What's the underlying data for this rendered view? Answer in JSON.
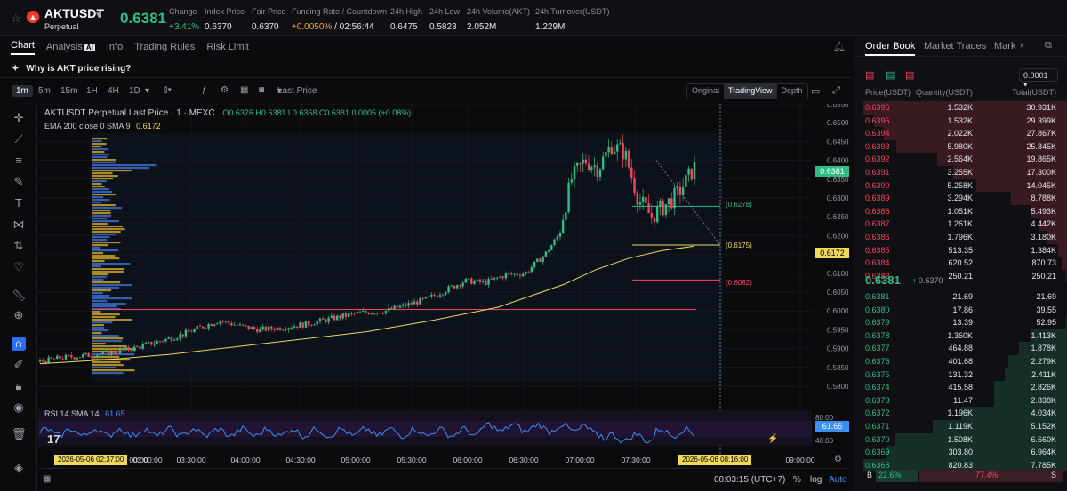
{
  "header": {
    "symbol": "AKTUSDT",
    "contract_type": "Perpetual",
    "last_price": "0.6381",
    "stats": [
      {
        "label": "Change",
        "value": "+3.41%",
        "color": "green"
      },
      {
        "label": "Index Price",
        "value": "0.6370",
        "color": ""
      },
      {
        "label": "Fair Price",
        "value": "0.6370",
        "color": ""
      },
      {
        "label": "Funding Rate / Countdown",
        "value": "+0.0050%",
        "value2": "/ 02:56:44",
        "color": "orange"
      },
      {
        "label": "24h High",
        "value": "0.6475",
        "color": ""
      },
      {
        "label": "24h Low",
        "value": "0.5823",
        "color": ""
      },
      {
        "label": "24h Volume(AKT)",
        "value": "2.052M",
        "color": ""
      },
      {
        "label": "24h Turnover(USDT)",
        "value": "1.229M",
        "color": ""
      }
    ]
  },
  "tabs": [
    "Chart",
    "Analysis",
    "Info",
    "Trading Rules",
    "Risk Limit"
  ],
  "analysis_badge": "AI",
  "why_banner": "Why is AKT price rising?",
  "toolbar": {
    "timeframes": [
      "1m",
      "5m",
      "15m",
      "1H",
      "4H",
      "1D"
    ],
    "active_timeframe": "1m",
    "price_type": "Last Price",
    "views": [
      "Original",
      "TradingView",
      "Depth"
    ],
    "active_view": "TradingView"
  },
  "chart_data": {
    "type": "candlestick",
    "title": "AKTUSDT Perpetual Last Price · 1 · MEXC",
    "ohlc_label": "O0.6376 H0.6381 L0.6368 C0.6381 0.0005 (+0.08%)",
    "ema_label": "EMA 200 close 0 SMA 9",
    "ema_value": "0.6172",
    "y_ticks": [
      "0.6550",
      "0.6500",
      "0.6450",
      "0.6400",
      "0.6350",
      "0.6300",
      "0.6250",
      "0.6200",
      "0.6150",
      "0.6100",
      "0.6050",
      "0.6000",
      "0.5950",
      "0.5900",
      "0.5850",
      "0.5800"
    ],
    "ylim": [
      0.58,
      0.655
    ],
    "x_ticks": [
      "03:00:00",
      "03:30:00",
      "04:00:00",
      "04:30:00",
      "05:00:00",
      "05:30:00",
      "06:00:00",
      "06:30:00",
      "07:00:00",
      "07:30:00",
      "09:00:00"
    ],
    "price_markers": {
      "current": "0.6381",
      "ema": "0.6172"
    },
    "price_levels": [
      {
        "label": "(0.6278)",
        "value": 0.6278,
        "color": "#2ebd85"
      },
      {
        "label": "(0.6175)",
        "value": 0.6175,
        "color": "#f0d85a"
      },
      {
        "label": "(0.6082)",
        "value": 0.6082,
        "color": "#f6465d"
      }
    ],
    "red_level": 0.6004,
    "close_path": [
      [
        0.0,
        0.5865
      ],
      [
        0.03,
        0.5875
      ],
      [
        0.06,
        0.588
      ],
      [
        0.09,
        0.5885
      ],
      [
        0.12,
        0.5893
      ],
      [
        0.15,
        0.5905
      ],
      [
        0.18,
        0.592
      ],
      [
        0.21,
        0.5935
      ],
      [
        0.24,
        0.5955
      ],
      [
        0.27,
        0.5975
      ],
      [
        0.3,
        0.596
      ],
      [
        0.33,
        0.595
      ],
      [
        0.36,
        0.5955
      ],
      [
        0.4,
        0.5965
      ],
      [
        0.44,
        0.598
      ],
      [
        0.48,
        0.5995
      ],
      [
        0.52,
        0.6
      ],
      [
        0.55,
        0.6015
      ],
      [
        0.58,
        0.603
      ],
      [
        0.61,
        0.6055
      ],
      [
        0.64,
        0.608
      ],
      [
        0.67,
        0.6075
      ],
      [
        0.7,
        0.6095
      ],
      [
        0.73,
        0.61
      ],
      [
        0.76,
        0.615
      ],
      [
        0.78,
        0.62
      ],
      [
        0.8,
        0.635
      ],
      [
        0.82,
        0.64
      ],
      [
        0.84,
        0.638
      ],
      [
        0.86,
        0.644
      ],
      [
        0.88,
        0.642
      ],
      [
        0.9,
        0.63
      ],
      [
        0.92,
        0.625
      ],
      [
        0.94,
        0.628
      ],
      [
        0.96,
        0.631
      ],
      [
        0.985,
        0.6381
      ]
    ],
    "ema_path": [
      [
        0.0,
        0.586
      ],
      [
        0.1,
        0.587
      ],
      [
        0.2,
        0.5885
      ],
      [
        0.3,
        0.5905
      ],
      [
        0.4,
        0.5925
      ],
      [
        0.5,
        0.5945
      ],
      [
        0.6,
        0.5975
      ],
      [
        0.7,
        0.601
      ],
      [
        0.8,
        0.607
      ],
      [
        0.85,
        0.611
      ],
      [
        0.9,
        0.614
      ],
      [
        0.95,
        0.616
      ],
      [
        1.0,
        0.6172
      ]
    ],
    "rsi": {
      "label": "RSI 14 SMA 14",
      "value": "61.65",
      "levels": [
        "80.00",
        "40.00"
      ]
    },
    "countdown_left": "2026-05-06  02:37:00",
    "countdown_right": "2026-05-06  08:16:00",
    "x_first": "00:00"
  },
  "bottom": {
    "time": "08:03:15 (UTC+7)",
    "pct": "%",
    "log": "log",
    "auto": "Auto"
  },
  "orderbook": {
    "tabs": [
      "Order Book",
      "Market Trades",
      "Mark"
    ],
    "precision": "0.0001",
    "headers": [
      "Price(USDT)",
      "Quantity(USDT)",
      "Total(USDT)"
    ],
    "asks": [
      [
        "0.6396",
        "1.532K",
        "30.931K",
        1.0
      ],
      [
        "0.6395",
        "1.532K",
        "29.399K",
        0.95
      ],
      [
        "0.6394",
        "2.022K",
        "27.867K",
        0.9
      ],
      [
        "0.6393",
        "5.980K",
        "25.845K",
        0.84
      ],
      [
        "0.6392",
        "2.564K",
        "19.865K",
        0.64
      ],
      [
        "0.6391",
        "3.255K",
        "17.300K",
        0.56
      ],
      [
        "0.6390",
        "5.258K",
        "14.045K",
        0.45
      ],
      [
        "0.6389",
        "3.294K",
        "8.788K",
        0.28
      ],
      [
        "0.6388",
        "1.051K",
        "5.493K",
        0.18
      ],
      [
        "0.6387",
        "1.261K",
        "4.442K",
        0.14
      ],
      [
        "0.6386",
        "1.796K",
        "3.180K",
        0.1
      ],
      [
        "0.6385",
        "513.35",
        "1.384K",
        0.05
      ],
      [
        "0.6384",
        "620.52",
        "870.73",
        0.03
      ],
      [
        "0.6383",
        "250.21",
        "250.21",
        0.01
      ]
    ],
    "mid_price": "0.6381",
    "mid_arrow": "↑",
    "mid_index": "0.6370",
    "bids": [
      [
        "0.6381",
        "21.69",
        "21.69",
        0.0
      ],
      [
        "0.6380",
        "17.86",
        "39.55",
        0.005
      ],
      [
        "0.6379",
        "13.39",
        "52.95",
        0.007
      ],
      [
        "0.6378",
        "1.360K",
        "1.413K",
        0.18
      ],
      [
        "0.6377",
        "464.88",
        "1.878K",
        0.24
      ],
      [
        "0.6376",
        "401.68",
        "2.279K",
        0.29
      ],
      [
        "0.6375",
        "131.32",
        "2.411K",
        0.31
      ],
      [
        "0.6374",
        "415.58",
        "2.826K",
        0.36
      ],
      [
        "0.6373",
        "11.47",
        "2.838K",
        0.36
      ],
      [
        "0.6372",
        "1.196K",
        "4.034K",
        0.52
      ],
      [
        "0.6371",
        "1.119K",
        "5.152K",
        0.66
      ],
      [
        "0.6370",
        "1.508K",
        "6.660K",
        0.85
      ],
      [
        "0.6369",
        "303.80",
        "6.964K",
        0.89
      ],
      [
        "0.6368",
        "820.83",
        "7.785K",
        1.0
      ]
    ],
    "buy_label": "B",
    "buy_pct": "22.6%",
    "sell_pct": "77.4%",
    "sell_label": "S",
    "buy_ratio": 0.226
  },
  "colors": {
    "up": "#2ebd85",
    "down": "#f6465d",
    "ema": "#f0d85a",
    "rsi": "#3b8ff6"
  }
}
